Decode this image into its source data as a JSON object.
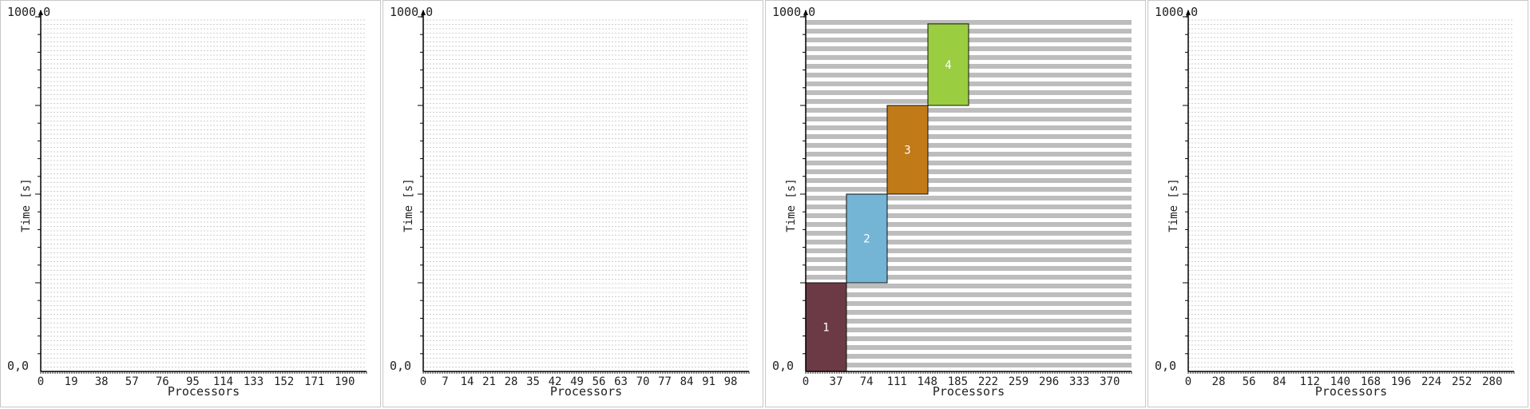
{
  "chart_data": [
    {
      "type": "gantt",
      "xlabel": "Processors",
      "ylabel": "Time [s]",
      "y_top_label": "1000,0",
      "y_bottom_label": "0,0",
      "ylim": [
        0,
        1000
      ],
      "xlim": [
        0,
        200
      ],
      "x_ticks": [
        "0",
        "19",
        "38",
        "57",
        "76",
        "95",
        "114",
        "133",
        "152",
        "171",
        "190"
      ],
      "grid_style": "dashed",
      "grid_color": "#cfcfcf",
      "tasks": []
    },
    {
      "type": "gantt",
      "xlabel": "Processors",
      "ylabel": "Time [s]",
      "y_top_label": "1000,0",
      "y_bottom_label": "0,0",
      "ylim": [
        0,
        1000
      ],
      "xlim": [
        0,
        100
      ],
      "x_ticks": [
        "0",
        "7",
        "14",
        "21",
        "28",
        "35",
        "42",
        "49",
        "56",
        "63",
        "70",
        "77",
        "84",
        "91",
        "98"
      ],
      "grid_style": "dashed",
      "grid_color": "#cfcfcf",
      "tasks": []
    },
    {
      "type": "gantt",
      "xlabel": "Processors",
      "ylabel": "Time [s]",
      "y_top_label": "1000,0",
      "y_bottom_label": "0,0",
      "ylim": [
        0,
        1000
      ],
      "xlim": [
        0,
        400
      ],
      "x_ticks": [
        "0",
        "37",
        "74",
        "111",
        "148",
        "185",
        "222",
        "259",
        "296",
        "333",
        "370"
      ],
      "grid_style": "bands",
      "grid_color": "#bdbdbd",
      "tasks": [
        {
          "label": "1",
          "x0": 0,
          "x1": 50,
          "y0": 0,
          "y1": 250,
          "color": "#6b3a45"
        },
        {
          "label": "2",
          "x0": 50,
          "x1": 100,
          "y0": 250,
          "y1": 500,
          "color": "#74b4d4"
        },
        {
          "label": "3",
          "x0": 100,
          "x1": 150,
          "y0": 500,
          "y1": 750,
          "color": "#c07a18"
        },
        {
          "label": "4",
          "x0": 150,
          "x1": 200,
          "y0": 750,
          "y1": 980,
          "color": "#9acd40"
        }
      ]
    },
    {
      "type": "gantt",
      "xlabel": "Processors",
      "ylabel": "Time [s]",
      "y_top_label": "1000,0",
      "y_bottom_label": "0,0",
      "ylim": [
        0,
        1000
      ],
      "xlim": [
        0,
        300
      ],
      "x_ticks": [
        "0",
        "28",
        "56",
        "84",
        "112",
        "140",
        "168",
        "196",
        "224",
        "252",
        "280"
      ],
      "grid_style": "dashed",
      "grid_color": "#cfcfcf",
      "tasks": []
    }
  ]
}
